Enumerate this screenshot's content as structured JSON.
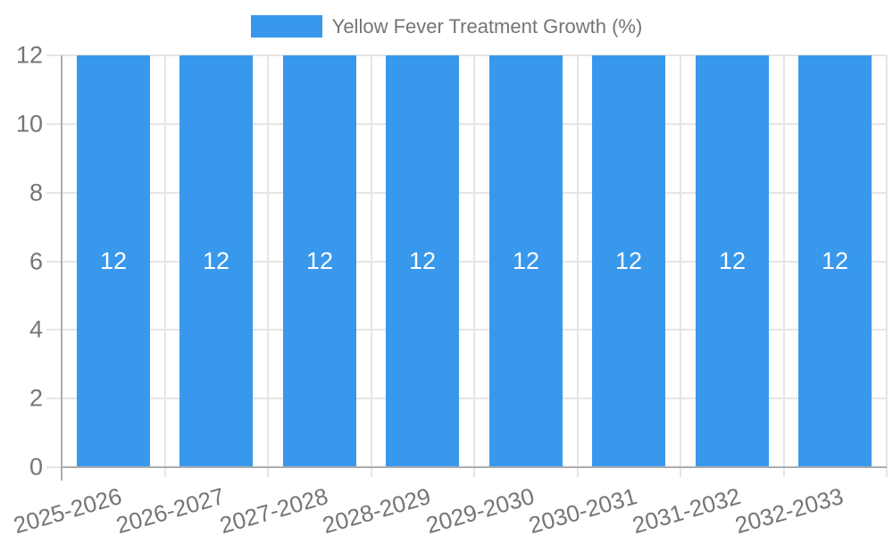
{
  "chart_data": {
    "type": "bar",
    "title": "Yellow Fever Treatment Growth (%)",
    "legend": {
      "position": "top",
      "label": "Yellow Fever Treatment Growth (%)"
    },
    "categories": [
      "2025-2026",
      "2026-2027",
      "2027-2028",
      "2028-2029",
      "2029-2030",
      "2030-2031",
      "2031-2032",
      "2032-2033"
    ],
    "series": [
      {
        "name": "Yellow Fever Treatment Growth (%)",
        "values": [
          12,
          12,
          12,
          12,
          12,
          12,
          12,
          12
        ]
      }
    ],
    "bar_value_labels": [
      "12",
      "12",
      "12",
      "12",
      "12",
      "12",
      "12",
      "12"
    ],
    "xlabel": "",
    "ylabel": "",
    "ylim": [
      0,
      12
    ],
    "yticks": [
      "0",
      "2",
      "4",
      "6",
      "8",
      "10",
      "12"
    ],
    "grid": true,
    "colors": {
      "bar": "#3898ec",
      "bar_value_label": "#ffffff",
      "axis_text": "#757575",
      "gridline": "#e5e5e5",
      "axis_line": "#adadad",
      "background": "#ffffff"
    }
  }
}
